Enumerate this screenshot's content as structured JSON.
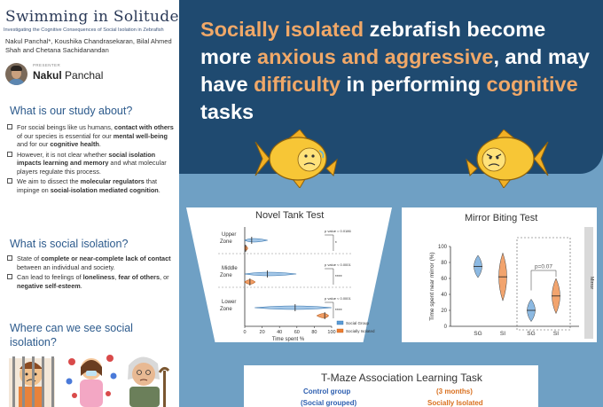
{
  "poster": {
    "title": "Swimming in Solitude:",
    "subtitle": "Investigating the Cognitive Consequences of Social Isolation in Zebrafish",
    "authors": "Nakul Panchal*, Koushika Chandrasekaran, Bilal Ahmed Shah and Chetana Sachidanandan",
    "presenter_label": "PRESENTER",
    "presenter_first": "Nakul",
    "presenter_last": "Panchal"
  },
  "section1": {
    "heading": "What is our study about?",
    "b1_a": "For social beings like us humans, ",
    "b1_b": "contact with others",
    "b1_c": " of our species is essential for our ",
    "b1_d": "mental well-being",
    "b1_e": " and for our ",
    "b1_f": "cognitive health",
    "b1_g": ".",
    "b2_a": "However, it is not clear whether ",
    "b2_b": "social isolation impacts learning and memory",
    "b2_c": " and what molecular players regulate this process.",
    "b3_a": "We aim to dissect the ",
    "b3_b": "molecular regulators",
    "b3_c": " that impinge on ",
    "b3_d": "social-isolation mediated cognition",
    "b3_e": "."
  },
  "section2": {
    "heading": "What is social isolation?",
    "b1_a": "State of ",
    "b1_b": "complete or near-complete lack of contact",
    "b1_c": " between an individual and society.",
    "b2_a": "Can lead to feelings of ",
    "b2_b": "loneliness",
    "b2_c": ", ",
    "b2_d": "fear of others",
    "b2_e": ", or ",
    "b2_f": "negative self-esteem",
    "b2_g": "."
  },
  "section3": {
    "heading": "Where can we see social isolation?"
  },
  "banner": {
    "w1": "Socially isolated",
    "w2": " zebrafish become more ",
    "w3": "anxious and aggressive",
    "w4": ", and may have ",
    "w5": "difficulty",
    "w6": " in performing ",
    "w7": "cognitive",
    "w8": " tasks"
  },
  "colors": {
    "banner_bg": "#1f4a70",
    "highlight": "#f0a868",
    "page_bg": "#6fa0c4",
    "social_group": "#5b9bd5",
    "socially_isolated": "#ed7d31"
  },
  "icons": [
    "anxious-fish-icon",
    "angry-fish-icon",
    "jail-person-icon",
    "virus-person-icon",
    "elderly-person-icon"
  ],
  "novel_tank": {
    "title": "Novel Tank Test",
    "zones": [
      "Upper\nZone",
      "Middle\nZone",
      "Lower\nZone"
    ],
    "p_values": [
      "p value = 0.0186",
      "p value < 0.0001",
      "p value < 0.0001"
    ],
    "significance": [
      "*",
      "****",
      "****"
    ],
    "xlabel": "Time spent %",
    "xticks": [
      "0",
      "20",
      "40",
      "60",
      "80",
      "100"
    ],
    "legend": [
      "Social Group",
      "Socially Isolated"
    ]
  },
  "mirror": {
    "title": "Mirror Biting Test",
    "ylabel": "Time spent near mirror (%)",
    "yticks": [
      "0",
      "20",
      "40",
      "60",
      "80",
      "100"
    ],
    "xticks": [
      "SG",
      "SI",
      "SG",
      "SI"
    ],
    "pvalue": "p=0.07",
    "side_label": "Mirror"
  },
  "tmaze": {
    "title": "T-Maze Association Learning Task",
    "control": "Control group",
    "control_sub": "(Social grouped)",
    "duration": "(3 months)",
    "isolated": "Socially Isolated"
  },
  "chart_data": [
    {
      "type": "violin",
      "title": "Novel Tank Test",
      "xlabel": "Time spent %",
      "xlim": [
        0,
        100
      ],
      "categories": [
        "Upper Zone",
        "Middle Zone",
        "Lower Zone"
      ],
      "series": [
        {
          "name": "Social Group",
          "medians": [
            8,
            26,
            58
          ]
        },
        {
          "name": "Socially Isolated",
          "medians": [
            1,
            6,
            92
          ]
        }
      ],
      "annotations": [
        "p value = 0.0186",
        "p value < 0.0001",
        "p value < 0.0001"
      ]
    },
    {
      "type": "violin",
      "title": "Mirror Biting Test",
      "ylabel": "Time spent near mirror (%)",
      "ylim": [
        0,
        100
      ],
      "categories": [
        "SG",
        "SI",
        "SG",
        "SI"
      ],
      "values": [
        75,
        62,
        20,
        38
      ],
      "annotations": [
        "p=0.07"
      ]
    }
  ]
}
